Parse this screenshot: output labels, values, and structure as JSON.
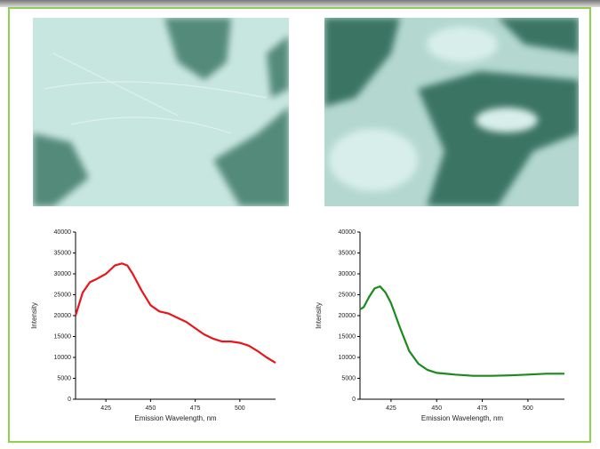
{
  "chart_data": [
    {
      "type": "line",
      "xlabel": "Emission Wavelength, nm",
      "ylabel": "Intensity",
      "color": "#e8161b",
      "x": [
        408,
        412,
        416,
        420,
        425,
        430,
        434,
        437,
        440,
        445,
        450,
        455,
        460,
        465,
        470,
        475,
        480,
        485,
        490,
        495,
        500,
        505,
        510,
        515,
        520
      ],
      "values": [
        20000,
        25500,
        28000,
        28800,
        30000,
        32000,
        32500,
        32000,
        30000,
        26000,
        22500,
        21000,
        20500,
        19500,
        18500,
        17000,
        15500,
        14500,
        13800,
        13800,
        13500,
        12800,
        11500,
        10000,
        8700
      ],
      "xlim": [
        408,
        520
      ],
      "ylim": [
        0,
        40000
      ],
      "xticks": [
        425,
        450,
        475,
        500
      ],
      "yticks": [
        0,
        5000,
        10000,
        15000,
        20000,
        25000,
        30000,
        35000,
        40000
      ]
    },
    {
      "type": "line",
      "xlabel": "Emission Wavelength, nm",
      "ylabel": "Intensity",
      "color": "#1a8a1a",
      "x": [
        408,
        410,
        413,
        416,
        419,
        422,
        425,
        430,
        435,
        440,
        445,
        450,
        460,
        470,
        480,
        490,
        500,
        510,
        520
      ],
      "values": [
        21500,
        22000,
        24500,
        26500,
        27000,
        25500,
        23000,
        17000,
        11500,
        8500,
        7000,
        6300,
        5900,
        5600,
        5600,
        5700,
        5900,
        6100,
        6100
      ],
      "xlim": [
        408,
        520
      ],
      "ylim": [
        0,
        40000
      ],
      "xticks": [
        425,
        450,
        475,
        500
      ],
      "yticks": [
        0,
        5000,
        10000,
        15000,
        20000,
        25000,
        30000,
        35000,
        40000
      ]
    }
  ]
}
